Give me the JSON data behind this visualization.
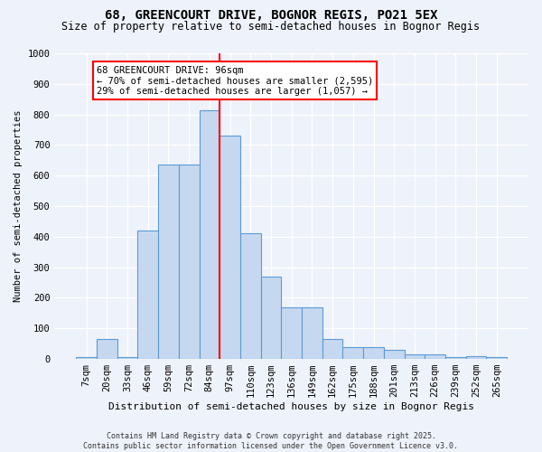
{
  "title_line1": "68, GREENCOURT DRIVE, BOGNOR REGIS, PO21 5EX",
  "title_line2": "Size of property relative to semi-detached houses in Bognor Regis",
  "xlabel": "Distribution of semi-detached houses by size in Bognor Regis",
  "ylabel": "Number of semi-detached properties",
  "categories": [
    "7sqm",
    "20sqm",
    "33sqm",
    "46sqm",
    "59sqm",
    "72sqm",
    "84sqm",
    "97sqm",
    "110sqm",
    "123sqm",
    "136sqm",
    "149sqm",
    "162sqm",
    "175sqm",
    "188sqm",
    "201sqm",
    "213sqm",
    "226sqm",
    "239sqm",
    "252sqm",
    "265sqm"
  ],
  "values": [
    5,
    65,
    5,
    420,
    635,
    635,
    815,
    730,
    410,
    270,
    170,
    170,
    65,
    40,
    40,
    30,
    15,
    15,
    5,
    10,
    5
  ],
  "bar_color": "#c5d8f0",
  "bar_edge_color": "#5b9bd5",
  "vline_color": "red",
  "vline_index": 7,
  "annotation_title": "68 GREENCOURT DRIVE: 96sqm",
  "annotation_line2": "← 70% of semi-detached houses are smaller (2,595)",
  "annotation_line3": "29% of semi-detached houses are larger (1,057) →",
  "annotation_box_color": "white",
  "annotation_box_edge": "red",
  "ylim": [
    0,
    1000
  ],
  "yticks": [
    0,
    100,
    200,
    300,
    400,
    500,
    600,
    700,
    800,
    900,
    1000
  ],
  "footer_line1": "Contains HM Land Registry data © Crown copyright and database right 2025.",
  "footer_line2": "Contains public sector information licensed under the Open Government Licence v3.0.",
  "background_color": "#eef2fb",
  "title_fontsize": 10,
  "subtitle_fontsize": 8.5,
  "xlabel_fontsize": 8,
  "ylabel_fontsize": 7.5,
  "tick_fontsize": 7.5,
  "footer_fontsize": 6
}
